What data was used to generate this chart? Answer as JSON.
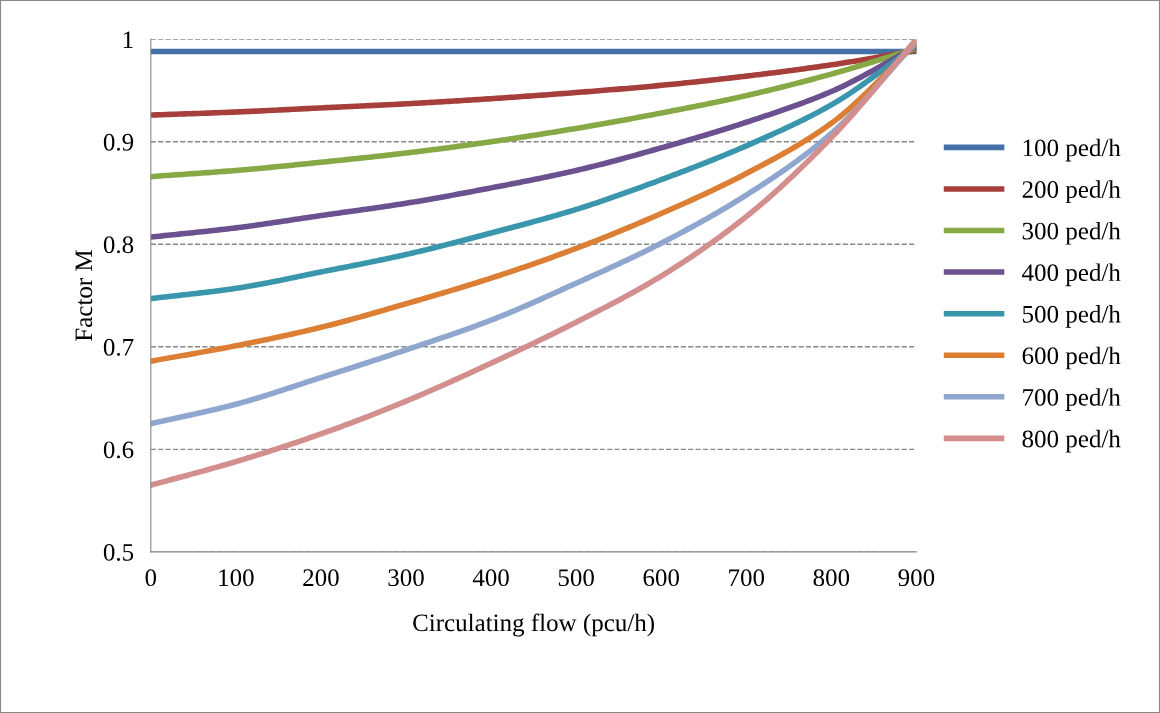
{
  "chart_data": {
    "type": "line",
    "xlabel": "Circulating flow (pcu/h)",
    "ylabel": "Factor M",
    "x": [
      0,
      100,
      200,
      300,
      400,
      500,
      600,
      700,
      800,
      900
    ],
    "xlim": [
      0,
      900
    ],
    "xticks": [
      0,
      100,
      200,
      300,
      400,
      500,
      600,
      700,
      800,
      900
    ],
    "ylim": [
      0.5,
      1
    ],
    "yticks": [
      0.5,
      0.6,
      0.7,
      0.8,
      0.9,
      1
    ],
    "grid": "y",
    "legend": "right",
    "marker": "none",
    "line_style": "solid",
    "series": [
      {
        "name": "100 ped/h",
        "color": "#4470a8",
        "values": [
          0.988,
          0.988,
          0.988,
          0.988,
          0.988,
          0.988,
          0.988,
          0.988,
          0.988,
          0.988
        ]
      },
      {
        "name": "200 ped/h",
        "color": "#a63f3c",
        "values": [
          0.926,
          0.929,
          0.933,
          0.937,
          0.942,
          0.948,
          0.955,
          0.964,
          0.975,
          0.989
        ]
      },
      {
        "name": "300 ped/h",
        "color": "#86a845",
        "values": [
          0.866,
          0.872,
          0.88,
          0.889,
          0.9,
          0.913,
          0.928,
          0.945,
          0.966,
          0.991
        ]
      },
      {
        "name": "400 ped/h",
        "color": "#6b5190",
        "values": [
          0.807,
          0.816,
          0.828,
          0.84,
          0.855,
          0.872,
          0.894,
          0.919,
          0.949,
          0.993
        ]
      },
      {
        "name": "500 ped/h",
        "color": "#3a96ad",
        "values": [
          0.747,
          0.757,
          0.773,
          0.79,
          0.811,
          0.834,
          0.863,
          0.896,
          0.936,
          0.994
        ]
      },
      {
        "name": "600 ped/h",
        "color": "#dc7f35",
        "values": [
          0.686,
          0.701,
          0.719,
          0.742,
          0.767,
          0.796,
          0.83,
          0.869,
          0.918,
          0.996
        ]
      },
      {
        "name": "700 ped/h",
        "color": "#8fa6ce",
        "values": [
          0.625,
          0.644,
          0.67,
          0.697,
          0.726,
          0.762,
          0.801,
          0.848,
          0.908,
          0.998
        ]
      },
      {
        "name": "800 ped/h",
        "color": "#d38e8e",
        "values": [
          0.565,
          0.588,
          0.615,
          0.647,
          0.684,
          0.724,
          0.769,
          0.827,
          0.904,
          1.0
        ]
      }
    ]
  }
}
